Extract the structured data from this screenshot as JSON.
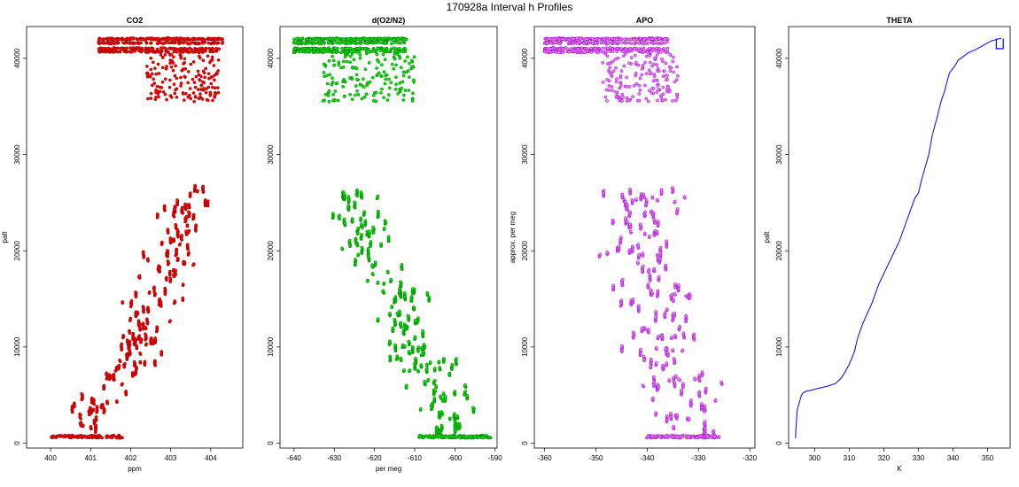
{
  "figure": {
    "title": "170928a   Interval h Profiles"
  },
  "chart_data": [
    {
      "type": "scatter",
      "title": "CO2",
      "xlabel": "ppm",
      "ylabel": "palt",
      "xlim": [
        399.4,
        404.8
      ],
      "ylim": [
        -500,
        43300
      ],
      "xticks": [
        400,
        401,
        402,
        403,
        404
      ],
      "yticks": [
        0,
        10000,
        20000,
        30000,
        40000
      ],
      "color": "#ff0000",
      "edge_color": "#8b0000",
      "profile": {
        "upper_band_y": [
          40500,
          42100
        ],
        "upper_band_x": [
          401.2,
          404.3
        ],
        "upper_scatter": {
          "y": [
            35500,
            40500
          ],
          "x": [
            402.4,
            404.2
          ]
        },
        "lower_track": [
          {
            "y": 600,
            "x": 400.9
          },
          {
            "y": 2500,
            "x": 401.0
          },
          {
            "y": 5000,
            "x": 401.5
          },
          {
            "y": 8000,
            "x": 402.0
          },
          {
            "y": 11000,
            "x": 402.4
          },
          {
            "y": 14000,
            "x": 402.6
          },
          {
            "y": 17000,
            "x": 402.8
          },
          {
            "y": 20000,
            "x": 403.0
          },
          {
            "y": 23000,
            "x": 403.3
          },
          {
            "y": 26000,
            "x": 403.5
          }
        ],
        "lower_spread": 0.55
      }
    },
    {
      "type": "scatter",
      "title": "d(O2/N2)",
      "xlabel": "per meg",
      "ylabel": "",
      "xlim": [
        -643.5,
        -589.5
      ],
      "ylim": [
        -500,
        43300
      ],
      "xticks": [
        -640,
        -630,
        -620,
        -610,
        -600,
        -590
      ],
      "yticks": [
        0,
        10000,
        20000,
        30000,
        40000
      ],
      "color": "#00ee00",
      "edge_color": "#006400",
      "profile": {
        "upper_band_y": [
          40500,
          42100
        ],
        "upper_band_x": [
          -640,
          -612
        ],
        "upper_scatter": {
          "y": [
            35500,
            40500
          ],
          "x": [
            -633,
            -610
          ]
        },
        "lower_track": [
          {
            "y": 600,
            "x": -600
          },
          {
            "y": 3000,
            "x": -601
          },
          {
            "y": 6000,
            "x": -605
          },
          {
            "y": 9000,
            "x": -610
          },
          {
            "y": 12000,
            "x": -612
          },
          {
            "y": 15000,
            "x": -614
          },
          {
            "y": 18000,
            "x": -619
          },
          {
            "y": 21000,
            "x": -622
          },
          {
            "y": 24000,
            "x": -624
          },
          {
            "y": 26000,
            "x": -624
          }
        ],
        "lower_spread": 5.5
      }
    },
    {
      "type": "scatter",
      "title": "APO",
      "xlabel": "",
      "ylabel": "approx. per meg",
      "xlim": [
        -362,
        -319
      ],
      "ylim": [
        -500,
        43300
      ],
      "xticks": [
        -360,
        -350,
        -340,
        -330,
        -320
      ],
      "yticks": [
        0,
        10000,
        20000,
        30000,
        40000
      ],
      "color": "#ee82ee",
      "edge_color": "#9400d3",
      "profile": {
        "upper_band_y": [
          40500,
          42100
        ],
        "upper_band_x": [
          -360,
          -336
        ],
        "upper_scatter": {
          "y": [
            35500,
            40500
          ],
          "x": [
            -349,
            -334
          ]
        },
        "lower_track": [
          {
            "y": 600,
            "x": -333
          },
          {
            "y": 3000,
            "x": -333
          },
          {
            "y": 6000,
            "x": -334
          },
          {
            "y": 9000,
            "x": -336
          },
          {
            "y": 12000,
            "x": -337
          },
          {
            "y": 15000,
            "x": -338
          },
          {
            "y": 18000,
            "x": -340
          },
          {
            "y": 21000,
            "x": -341
          },
          {
            "y": 24000,
            "x": -341
          },
          {
            "y": 26000,
            "x": -340
          }
        ],
        "lower_spread": 6.5
      }
    },
    {
      "type": "line",
      "title": "THETA",
      "xlabel": "K",
      "ylabel": "palt",
      "xlim": [
        292.5,
        356.5
      ],
      "ylim": [
        -500,
        43300
      ],
      "xticks": [
        300,
        310,
        320,
        330,
        340,
        350
      ],
      "yticks": [
        0,
        10000,
        20000,
        30000,
        40000
      ],
      "color": "#0000ff",
      "x": [
        294.5,
        294.6,
        295.0,
        295.8,
        296.2,
        296.6,
        297.5,
        299.0,
        301.0,
        303.5,
        306.0,
        307.5,
        308.5,
        310.0,
        311.5,
        312.5,
        314.0,
        316.5,
        318.5,
        320.5,
        322.5,
        324.5,
        326.0,
        327.5,
        329.0,
        330.0,
        331.0,
        333.0,
        334.0,
        335.5,
        336.5,
        337.5,
        338.2,
        339.0,
        340.5,
        341.5,
        343.0,
        344.5,
        346.5,
        348.0,
        349.5,
        351.0,
        352.0,
        353.0,
        354.0
      ],
      "y": [
        500,
        1500,
        3500,
        4500,
        5000,
        5200,
        5400,
        5500,
        5700,
        5900,
        6200,
        6700,
        7200,
        8200,
        9500,
        11000,
        12500,
        14500,
        16500,
        18000,
        19500,
        21000,
        22500,
        24000,
        25500,
        26000,
        27500,
        30000,
        32000,
        34000,
        35500,
        36500,
        37500,
        38500,
        39200,
        39800,
        40200,
        40600,
        40900,
        41200,
        41500,
        41800,
        41900,
        42000,
        42100
      ]
    }
  ]
}
